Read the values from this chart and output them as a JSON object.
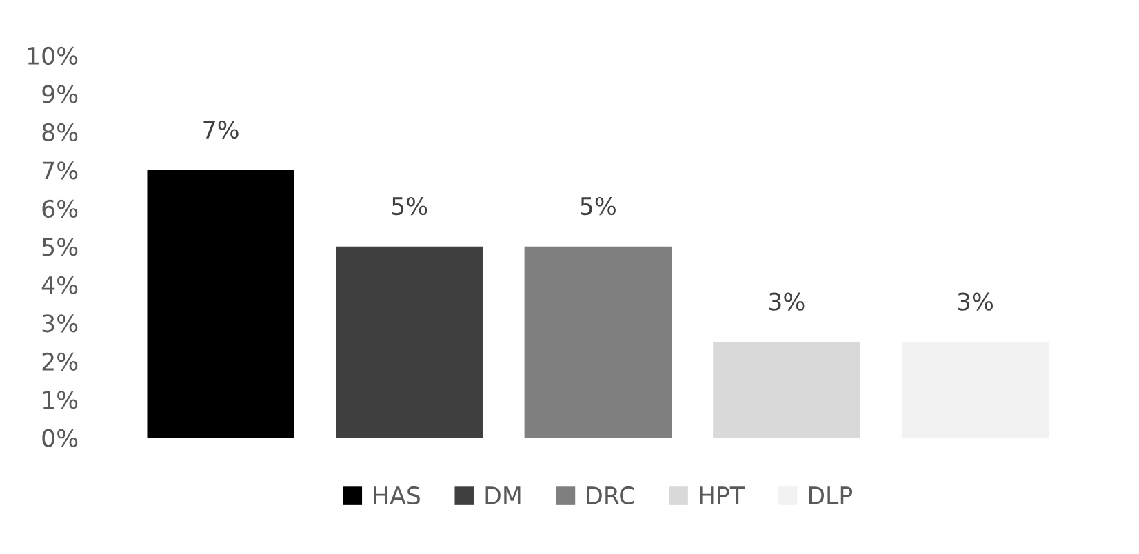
{
  "chart_data": {
    "type": "bar",
    "categories": [
      null
    ],
    "series": [
      {
        "name": "HAS",
        "color": "#000000",
        "values": [
          7
        ],
        "value_labels": [
          "7%"
        ]
      },
      {
        "name": "DM",
        "color": "#404040",
        "values": [
          5
        ],
        "value_labels": [
          "5%"
        ]
      },
      {
        "name": "DRC",
        "color": "#7f7f7f",
        "values": [
          5
        ],
        "value_labels": [
          "5%"
        ]
      },
      {
        "name": "HPT",
        "color": "#d9d9d9",
        "values": [
          2.5
        ],
        "value_labels": [
          "3%"
        ]
      },
      {
        "name": "DLP",
        "color": "#f2f2f2",
        "values": [
          2.5
        ],
        "value_labels": [
          "3%"
        ]
      }
    ],
    "ylim": [
      0,
      10
    ],
    "yticks": [
      {
        "value": 0,
        "label": "0%"
      },
      {
        "value": 1,
        "label": "1%"
      },
      {
        "value": 2,
        "label": "2%"
      },
      {
        "value": 3,
        "label": "3%"
      },
      {
        "value": 4,
        "label": "4%"
      },
      {
        "value": 5,
        "label": "5%"
      },
      {
        "value": 6,
        "label": "6%"
      },
      {
        "value": 7,
        "label": "7%"
      },
      {
        "value": 8,
        "label": "8%"
      },
      {
        "value": 9,
        "label": "9%"
      },
      {
        "value": 10,
        "label": "10%"
      }
    ],
    "tick_labels": "y",
    "grid": false,
    "legend": "bottom"
  }
}
